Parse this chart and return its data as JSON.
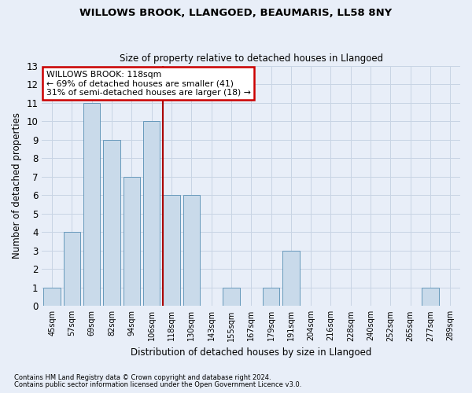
{
  "title": "WILLOWS BROOK, LLANGOED, BEAUMARIS, LL58 8NY",
  "subtitle": "Size of property relative to detached houses in Llangoed",
  "xlabel": "Distribution of detached houses by size in Llangoed",
  "ylabel": "Number of detached properties",
  "categories": [
    "45sqm",
    "57sqm",
    "69sqm",
    "82sqm",
    "94sqm",
    "106sqm",
    "118sqm",
    "130sqm",
    "143sqm",
    "155sqm",
    "167sqm",
    "179sqm",
    "191sqm",
    "204sqm",
    "216sqm",
    "228sqm",
    "240sqm",
    "252sqm",
    "265sqm",
    "277sqm",
    "289sqm"
  ],
  "values": [
    1,
    4,
    11,
    9,
    7,
    10,
    6,
    6,
    0,
    1,
    0,
    1,
    3,
    0,
    0,
    0,
    0,
    0,
    0,
    1,
    0
  ],
  "bar_color": "#c9daea",
  "bar_edge_color": "#6699bb",
  "highlight_index": 6,
  "highlight_color": "#aa0000",
  "ylim": [
    0,
    13
  ],
  "yticks": [
    0,
    1,
    2,
    3,
    4,
    5,
    6,
    7,
    8,
    9,
    10,
    11,
    12,
    13
  ],
  "annotation_title": "WILLOWS BROOK: 118sqm",
  "annotation_line1": "← 69% of detached houses are smaller (41)",
  "annotation_line2": "31% of semi-detached houses are larger (18) →",
  "annotation_box_color": "#ffffff",
  "annotation_box_edge_color": "#cc0000",
  "grid_color": "#c8d4e4",
  "background_color": "#e8eef8",
  "plot_bg_color": "#e8eef8",
  "footer1": "Contains HM Land Registry data © Crown copyright and database right 2024.",
  "footer2": "Contains public sector information licensed under the Open Government Licence v3.0."
}
